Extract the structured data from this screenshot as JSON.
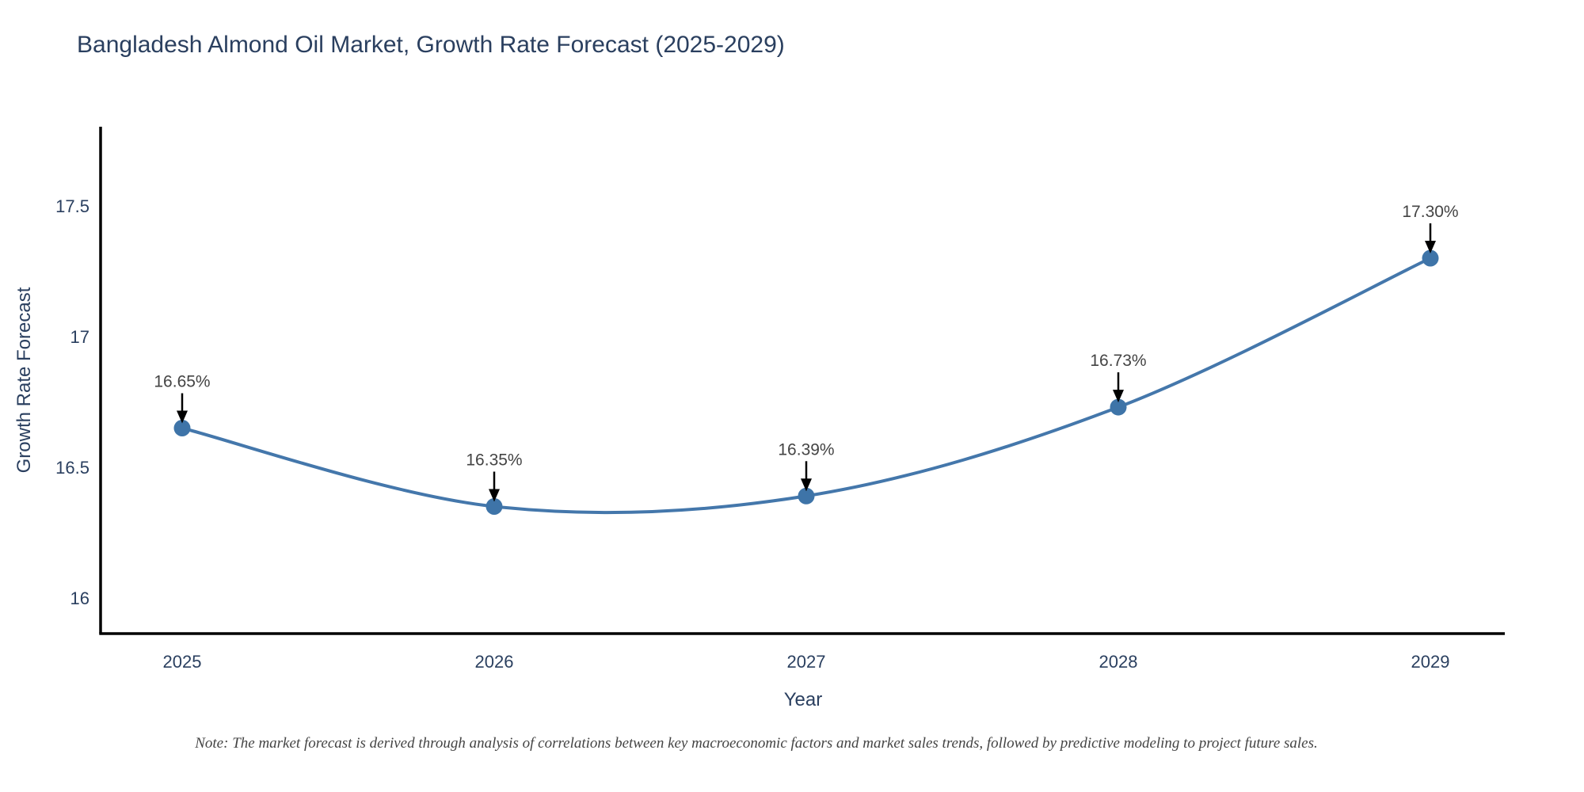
{
  "title": "Bangladesh Almond Oil Market, Growth Rate Forecast (2025-2029)",
  "footnote": "Note: The market forecast is derived through analysis of correlations between key macroeconomic factors and market sales trends, followed by predictive modeling to project future sales.",
  "chart_data": {
    "type": "line",
    "line_shape": "spline",
    "title": "Bangladesh Almond Oil Market, Growth Rate Forecast (2025-2029)",
    "xlabel": "Year",
    "ylabel": "Growth Rate Forecast",
    "x": [
      2025,
      2026,
      2027,
      2028,
      2029
    ],
    "series": [
      {
        "name": "Growth Rate Forecast",
        "values": [
          16.65,
          16.35,
          16.39,
          16.73,
          17.3
        ]
      }
    ],
    "point_labels": [
      "16.65%",
      "16.35%",
      "16.39%",
      "16.73%",
      "17.30%"
    ],
    "x_tick_labels": [
      "2025",
      "2026",
      "2027",
      "2028",
      "2029"
    ],
    "y_ticks": [
      16,
      16.5,
      17,
      17.5
    ],
    "y_tick_labels": [
      "16",
      "16.5",
      "17",
      "17.5"
    ],
    "ylim": [
      15.86,
      17.8
    ],
    "grid": false,
    "legend_position": "none",
    "annotations_have_arrows": true,
    "line_color": "#4477ab",
    "marker_color": "#3e74a8",
    "arrow_color": "#000000"
  },
  "colors": {
    "background": "#ffffff",
    "title_text": "#2a3f5f",
    "tick_text": "#2a3f5f",
    "annotation_text": "#444444",
    "axis_line": "#000000",
    "note_text": "#444444"
  }
}
